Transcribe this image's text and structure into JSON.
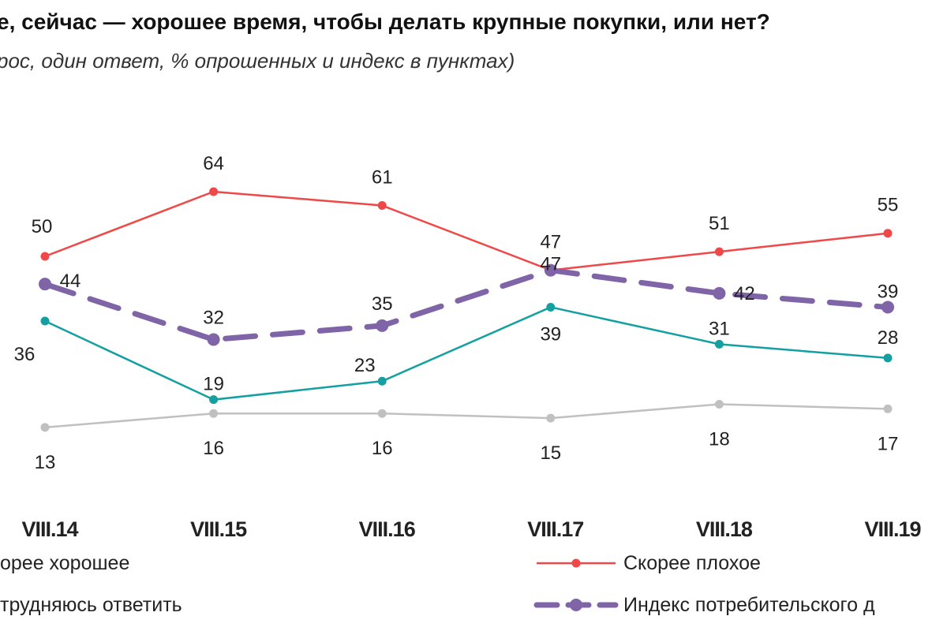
{
  "title": "е, сейчас — хорошее время, чтобы делать крупные покупки, или нет?",
  "subtitle": "рос, один ответ, % опрошенных и индекс в пунктах)",
  "chart_data": {
    "type": "line",
    "categories": [
      "VIII.14",
      "VIII.15",
      "VIII.16",
      "VIII.17",
      "VIII.18",
      "VIII.19"
    ],
    "series": [
      {
        "name": "Скорее плохое",
        "color": "#f04848",
        "dashed": false,
        "values": [
          50,
          64,
          61,
          47,
          51,
          55
        ]
      },
      {
        "name": "Индекс потребительского д",
        "color": "#8064a8",
        "dashed": true,
        "values": [
          44,
          32,
          35,
          47,
          42,
          39
        ]
      },
      {
        "name": "орее хорошее",
        "color": "#14a0a0",
        "dashed": false,
        "values": [
          36,
          19,
          23,
          39,
          31,
          28
        ]
      },
      {
        "name": "трудняюсь ответить",
        "color": "#c0c0c0",
        "dashed": false,
        "values": [
          13,
          16,
          16,
          15,
          18,
          17
        ]
      }
    ],
    "legend_placement": "bottom",
    "grid": false
  }
}
